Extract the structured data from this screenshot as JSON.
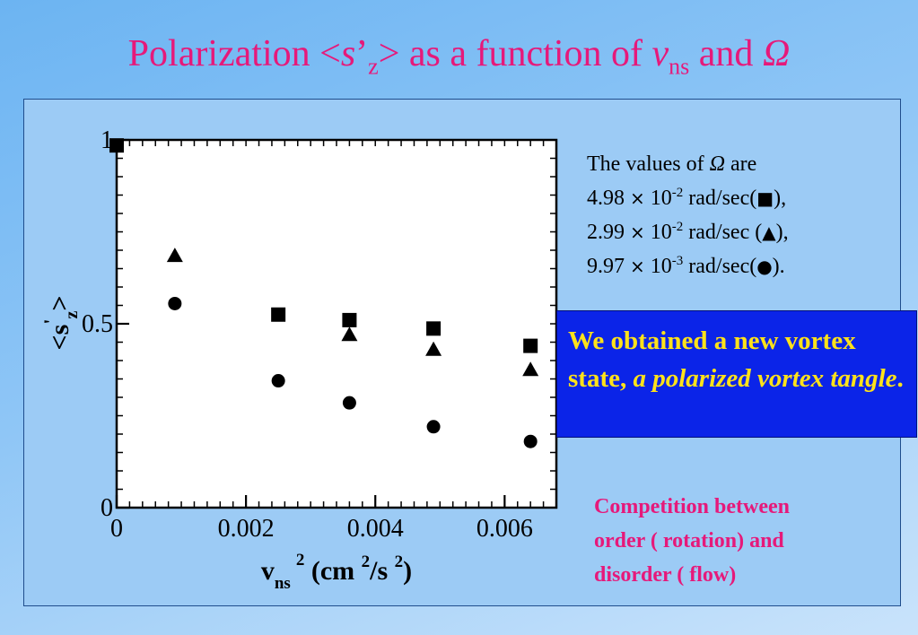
{
  "slide": {
    "title_parts": [
      "Polarization <",
      "s",
      "’",
      "z",
      "> as a function of ",
      "v",
      "ns",
      " and ",
      "Ω"
    ],
    "omega": {
      "intro_prefix": "The values of ",
      "intro_symbol": "Ω",
      "intro_suffix": " are",
      "lines": [
        {
          "mantissa": "4.98",
          "times": "×",
          "base": " 10",
          "exp": "-2",
          "unit_text": " rad/sec(",
          "symbol": "■",
          "close": "),",
          "marker": "square-icon"
        },
        {
          "mantissa": "2.99",
          "times": "×",
          "base": " 10",
          "exp": "-2",
          "unit_text": " rad/sec (",
          "symbol": "▲",
          "close": "),",
          "marker": "triangle-icon"
        },
        {
          "mantissa": "9.97",
          "times": "×",
          "base": " 10",
          "exp": "-3",
          "unit_text": " rad/sec(",
          "symbol": "●",
          "close": ").",
          "marker": "circle-icon"
        }
      ]
    },
    "result": {
      "text_plain": "We obtained a new vortex state, ",
      "text_emph": "a polarized vortex tangle",
      "text_end": "."
    },
    "competition_lines": [
      "Competition between",
      "order ( rotation) and",
      "disorder ( flow)"
    ],
    "colors": {
      "title": "#e6197a",
      "competition": "#e6197a",
      "result_bg": "#0b24e8",
      "result_text": "#ffe21a",
      "panel_bg": "#9ccbf5"
    }
  },
  "chart_data": {
    "type": "scatter",
    "xlim": [
      0,
      0.0068
    ],
    "ylim": [
      0,
      1
    ],
    "xticks": [
      "0",
      "0.002",
      "0.004",
      "0.006"
    ],
    "xtick_values": [
      0,
      0.002,
      0.004,
      0.006
    ],
    "yticks": [
      "0",
      "0.5",
      "1"
    ],
    "ytick_values": [
      0,
      0.5,
      1
    ],
    "xlabel": {
      "base": "v",
      "sub": "ns",
      "sup1": "2",
      "mid": " (cm ",
      "sup2": "2",
      "mid2": "/s ",
      "sup3": "2",
      "end": ")"
    },
    "ylabel": {
      "open": "<s",
      "prime": "'",
      "sub": "z",
      "close": ">"
    },
    "grid": false,
    "series": [
      {
        "marker": "square",
        "points": [
          [
            0,
            0.985
          ],
          [
            0.0025,
            0.525
          ],
          [
            0.0036,
            0.51
          ],
          [
            0.0049,
            0.487
          ],
          [
            0.0064,
            0.44
          ]
        ]
      },
      {
        "marker": "triangle",
        "points": [
          [
            0.0009,
            0.685
          ],
          [
            0.0036,
            0.47
          ],
          [
            0.0049,
            0.43
          ],
          [
            0.0064,
            0.375
          ]
        ]
      },
      {
        "marker": "circle",
        "points": [
          [
            0.0009,
            0.555
          ],
          [
            0.0025,
            0.345
          ],
          [
            0.0036,
            0.285
          ],
          [
            0.0049,
            0.22
          ],
          [
            0.0064,
            0.18
          ]
        ]
      }
    ]
  }
}
